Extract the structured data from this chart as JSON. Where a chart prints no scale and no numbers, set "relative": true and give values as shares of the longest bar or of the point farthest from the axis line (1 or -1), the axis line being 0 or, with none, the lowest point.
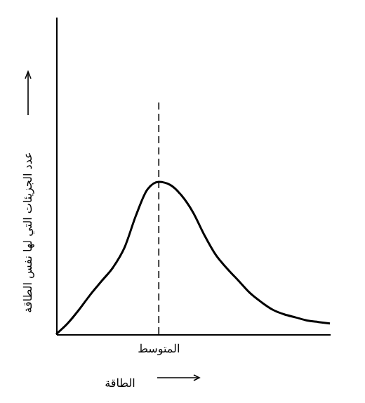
{
  "chart_data": {
    "type": "line",
    "xlabel": "الطاقة",
    "ylabel": "عدد الجزيئات التي لها نفس الطاقة",
    "relative": true,
    "categories": [
      null,
      null,
      null,
      null,
      null,
      null,
      null,
      null,
      null,
      null,
      null,
      null,
      null,
      null,
      null,
      null,
      null,
      null,
      null,
      null,
      null,
      null,
      null,
      null,
      null
    ],
    "series": [
      {
        "color": "#000000",
        "values": [
          0,
          0.07,
          0.16,
          0.26,
          0.35,
          0.44,
          0.57,
          0.78,
          0.95,
          1.0,
          0.98,
          0.91,
          0.8,
          0.65,
          0.52,
          0.43,
          0.35,
          0.27,
          0.21,
          0.16,
          0.13,
          0.11,
          0.09,
          0.08,
          0.07
        ]
      }
    ],
    "annotations": [
      "المتوسط"
    ]
  }
}
